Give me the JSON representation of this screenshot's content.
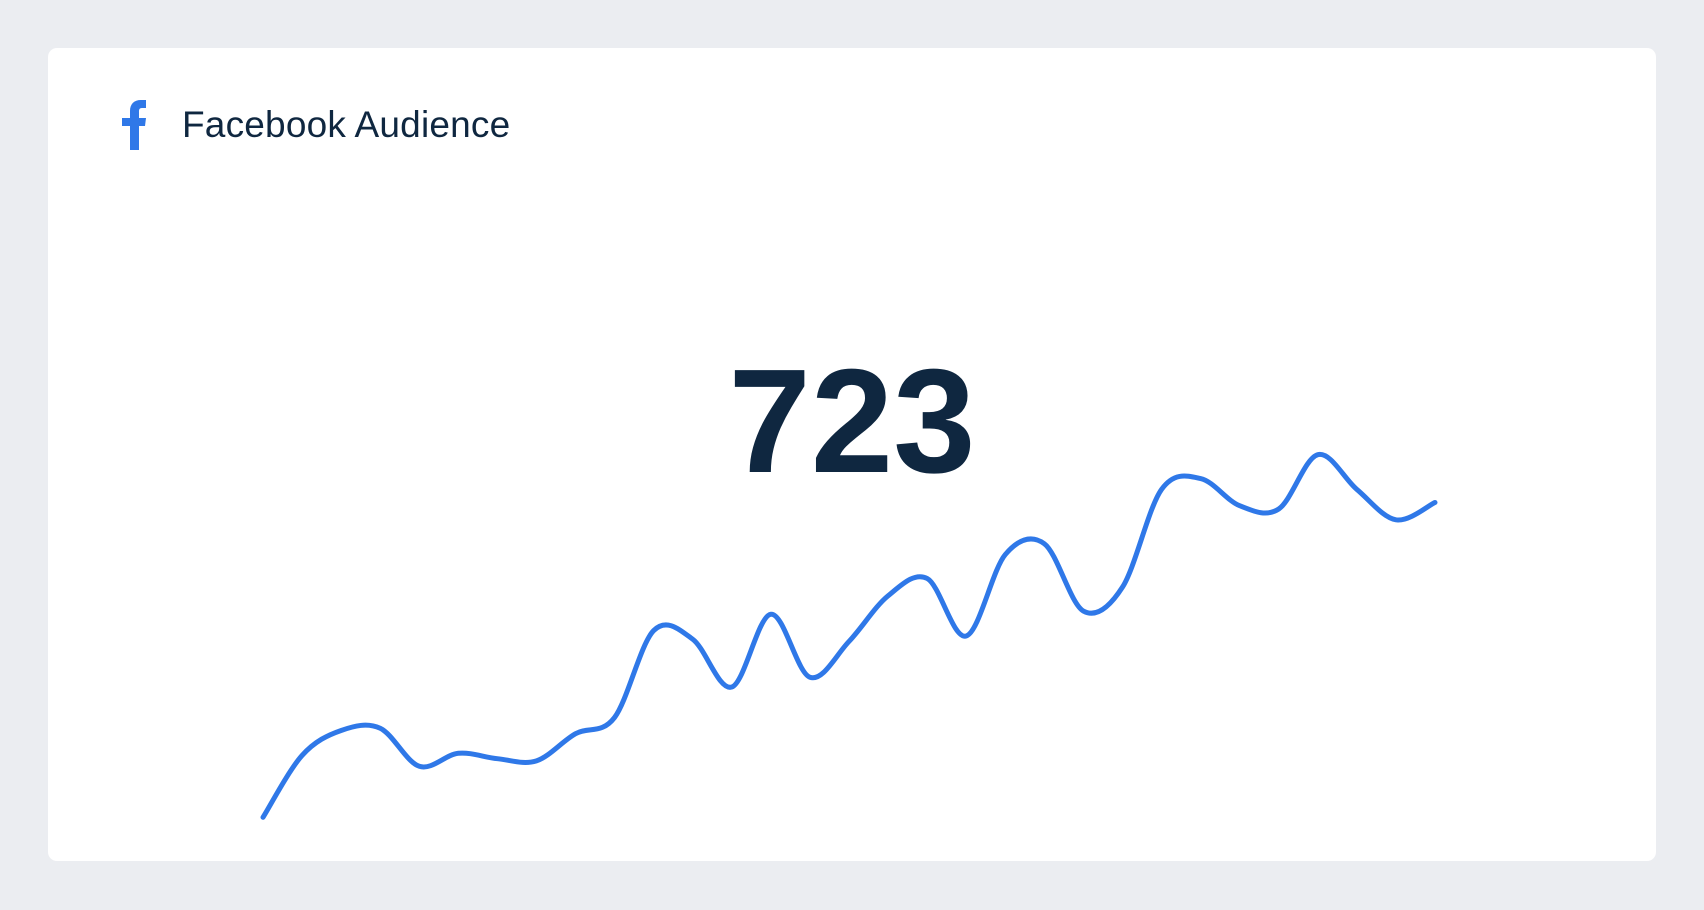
{
  "widget": {
    "title": "Facebook Audience",
    "icon": "facebook-icon",
    "value": "723"
  },
  "colors": {
    "accent": "#2f78e8",
    "text": "#0f2740",
    "background": "#ebedf1"
  },
  "chart_data": {
    "type": "line",
    "title": "Facebook Audience",
    "xlabel": "",
    "ylabel": "",
    "grid": false,
    "legend": "none",
    "series": [
      {
        "name": "Facebook Audience",
        "values": [
          8,
          65,
          88,
          90,
          55,
          67,
          62,
          60,
          85,
          100,
          180,
          172,
          128,
          195,
          137,
          170,
          212,
          228,
          175,
          250,
          260,
          198,
          220,
          310,
          320,
          295,
          292,
          342,
          310,
          282,
          298
        ]
      }
    ],
    "ylim": [
      0,
      350
    ]
  }
}
